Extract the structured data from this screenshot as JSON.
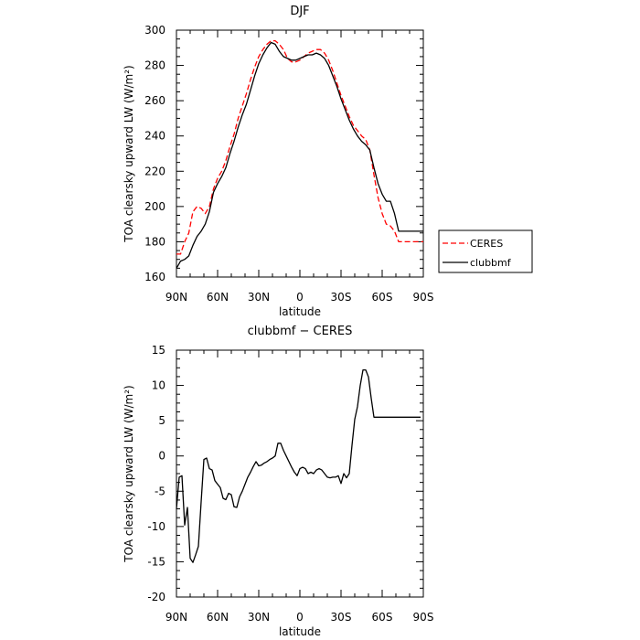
{
  "chart_data": [
    {
      "type": "line",
      "title": "DJF",
      "xlabel": "latitude",
      "ylabel": "TOA clearsky upward LW (W/m²)",
      "x_ticks": [
        "90N",
        "60N",
        "30N",
        "0",
        "30S",
        "60S",
        "90S"
      ],
      "xlim": [
        90,
        -90
      ],
      "ylim": [
        160,
        300
      ],
      "y_ticks": [
        "160",
        "180",
        "200",
        "220",
        "240",
        "260",
        "280",
        "300"
      ],
      "legend": "right",
      "series": [
        {
          "name": "CERES",
          "color": "#ff0000",
          "style": "dashed",
          "x": [
            90,
            87,
            84,
            81,
            78,
            75,
            72,
            69,
            66,
            63,
            60,
            57,
            54,
            51,
            48,
            45,
            42,
            39,
            36,
            33,
            30,
            27,
            24,
            21,
            18,
            15,
            12,
            9,
            6,
            3,
            0,
            -3,
            -6,
            -9,
            -12,
            -15,
            -18,
            -21,
            -24,
            -27,
            -30,
            -33,
            -36,
            -39,
            -42,
            -45,
            -48,
            -51,
            -54,
            -57,
            -60,
            -63,
            -66,
            -69,
            -72,
            -75,
            -78,
            -81,
            -84,
            -87,
            -90
          ],
          "y": [
            173,
            173,
            180,
            185,
            197,
            200,
            199,
            196,
            200,
            210,
            216,
            220,
            226,
            234,
            241,
            250,
            257,
            264,
            272,
            279,
            285,
            289,
            292,
            294,
            294,
            292,
            289,
            284,
            282,
            282,
            283,
            285,
            287,
            288,
            289,
            289,
            287,
            283,
            277,
            270,
            263,
            257,
            251,
            246,
            243,
            240,
            238,
            232,
            218,
            205,
            196,
            190,
            189,
            186,
            180,
            180,
            180,
            180,
            180,
            180,
            180
          ]
        },
        {
          "name": "clubbmf",
          "color": "#000000",
          "style": "solid",
          "x": [
            90,
            87,
            84,
            81,
            78,
            75,
            72,
            69,
            66,
            63,
            60,
            57,
            54,
            51,
            48,
            45,
            42,
            39,
            36,
            33,
            30,
            27,
            24,
            21,
            18,
            15,
            12,
            9,
            6,
            3,
            0,
            -3,
            -6,
            -9,
            -12,
            -15,
            -18,
            -21,
            -24,
            -27,
            -30,
            -33,
            -36,
            -39,
            -42,
            -45,
            -48,
            -51,
            -54,
            -57,
            -60,
            -63,
            -66,
            -69,
            -72,
            -75,
            -78,
            -81,
            -84,
            -87,
            -90
          ],
          "y": [
            165,
            169,
            170,
            172,
            178,
            183,
            186,
            190,
            197,
            208,
            213,
            217,
            222,
            230,
            237,
            245,
            252,
            258,
            266,
            274,
            281,
            286,
            290,
            293,
            292,
            288,
            285,
            284,
            283,
            283,
            284,
            285,
            286,
            286,
            287,
            286,
            284,
            280,
            274,
            268,
            261,
            255,
            249,
            244,
            240,
            237,
            235,
            232,
            222,
            213,
            207,
            203,
            203,
            196,
            186,
            186,
            186,
            186,
            186,
            186,
            186
          ]
        }
      ]
    },
    {
      "type": "line",
      "title": "clubbmf − CERES",
      "xlabel": "latitude",
      "ylabel": "TOA clearsky upward LW (W/m²)",
      "x_ticks": [
        "90N",
        "60N",
        "30N",
        "0",
        "30S",
        "60S",
        "90S"
      ],
      "xlim": [
        90,
        -90
      ],
      "ylim": [
        -20,
        15
      ],
      "y_ticks": [
        "-20",
        "-15",
        "-10",
        "-5",
        "0",
        "5",
        "10",
        "15"
      ],
      "series": [
        {
          "color": "#000000",
          "style": "solid",
          "x": [
            90,
            88,
            86,
            84,
            82,
            80,
            78,
            76,
            74,
            72,
            70,
            68,
            66,
            64,
            62,
            60,
            58,
            56,
            54,
            52,
            50,
            48,
            46,
            44,
            42,
            40,
            38,
            36,
            34,
            32,
            30,
            28,
            26,
            24,
            22,
            20,
            18,
            16,
            14,
            12,
            10,
            8,
            6,
            4,
            2,
            0,
            -2,
            -4,
            -6,
            -8,
            -10,
            -12,
            -14,
            -16,
            -18,
            -20,
            -22,
            -24,
            -26,
            -28,
            -30,
            -32,
            -34,
            -36,
            -38,
            -40,
            -42,
            -44,
            -46,
            -48,
            -50,
            -52,
            -54,
            -56,
            -58,
            -60,
            -62,
            -64,
            -66,
            -68,
            -70,
            -72,
            -74,
            -76,
            -78,
            -80,
            -82,
            -84,
            -86,
            -88
          ],
          "y": [
            -7.5,
            -3.0,
            -2.8,
            -9.8,
            -7.3,
            -14.5,
            -15.1,
            -14.0,
            -12.8,
            -6.5,
            -0.5,
            -0.3,
            -1.8,
            -2.0,
            -3.5,
            -4.0,
            -4.5,
            -6.0,
            -6.2,
            -5.3,
            -5.5,
            -7.2,
            -7.3,
            -5.8,
            -5.0,
            -4.0,
            -3.0,
            -2.3,
            -1.5,
            -0.8,
            -1.4,
            -1.3,
            -1.0,
            -0.8,
            -0.5,
            -0.3,
            0.0,
            1.8,
            1.8,
            0.8,
            0.0,
            -0.8,
            -1.6,
            -2.3,
            -2.8,
            -1.8,
            -1.6,
            -1.8,
            -2.5,
            -2.3,
            -2.5,
            -2.0,
            -1.8,
            -2.0,
            -2.5,
            -3.0,
            -3.1,
            -3.0,
            -3.0,
            -2.8,
            -3.9,
            -2.5,
            -3.1,
            -2.5,
            1.5,
            5.2,
            7.0,
            10.0,
            12.2,
            12.2,
            11.2,
            8.2,
            5.5,
            5.5,
            5.5,
            5.5,
            5.5,
            5.5,
            5.5,
            5.5,
            5.5,
            5.5,
            5.5,
            5.5,
            5.5,
            5.5,
            5.5,
            5.5,
            5.5,
            5.5
          ]
        }
      ]
    }
  ]
}
